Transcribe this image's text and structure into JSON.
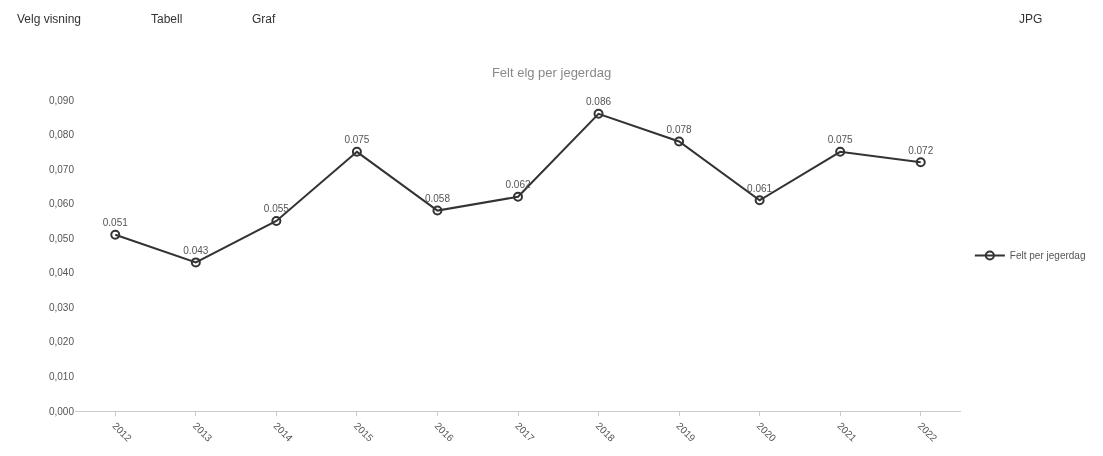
{
  "chart_data": {
    "type": "line",
    "title": "Felt elg per jegerdag",
    "annotations": [
      "Velg visning",
      "Tabell",
      "Graf",
      "JPG"
    ],
    "categories": [
      "2012",
      "2013",
      "2014",
      "2015",
      "2016",
      "2017",
      "2018",
      "2019",
      "2020",
      "2021",
      "2022"
    ],
    "series": [
      {
        "name": "Felt per jegerdag",
        "color": "#333333",
        "values": [
          0.051,
          0.043,
          0.055,
          0.075,
          0.058,
          0.062,
          0.086,
          0.078,
          0.061,
          0.075,
          0.072
        ]
      }
    ],
    "ylim": [
      0,
      0.09
    ],
    "yticks": [
      {
        "value": 0,
        "label": "0,000"
      },
      {
        "value": 0.01,
        "label": "0,010"
      },
      {
        "value": 0.02,
        "label": "0,020"
      },
      {
        "value": 0.03,
        "label": "0,030"
      },
      {
        "value": 0.04,
        "label": "0,040"
      },
      {
        "value": 0.05,
        "label": "0,050"
      },
      {
        "value": 0.06,
        "label": "0,060"
      },
      {
        "value": 0.07,
        "label": "0,070"
      },
      {
        "value": 0.08,
        "label": "0,080"
      },
      {
        "value": 0.09,
        "label": "0,090"
      }
    ],
    "data_labels": true,
    "legend": "right",
    "marker": "circle",
    "line_style": "solid"
  }
}
